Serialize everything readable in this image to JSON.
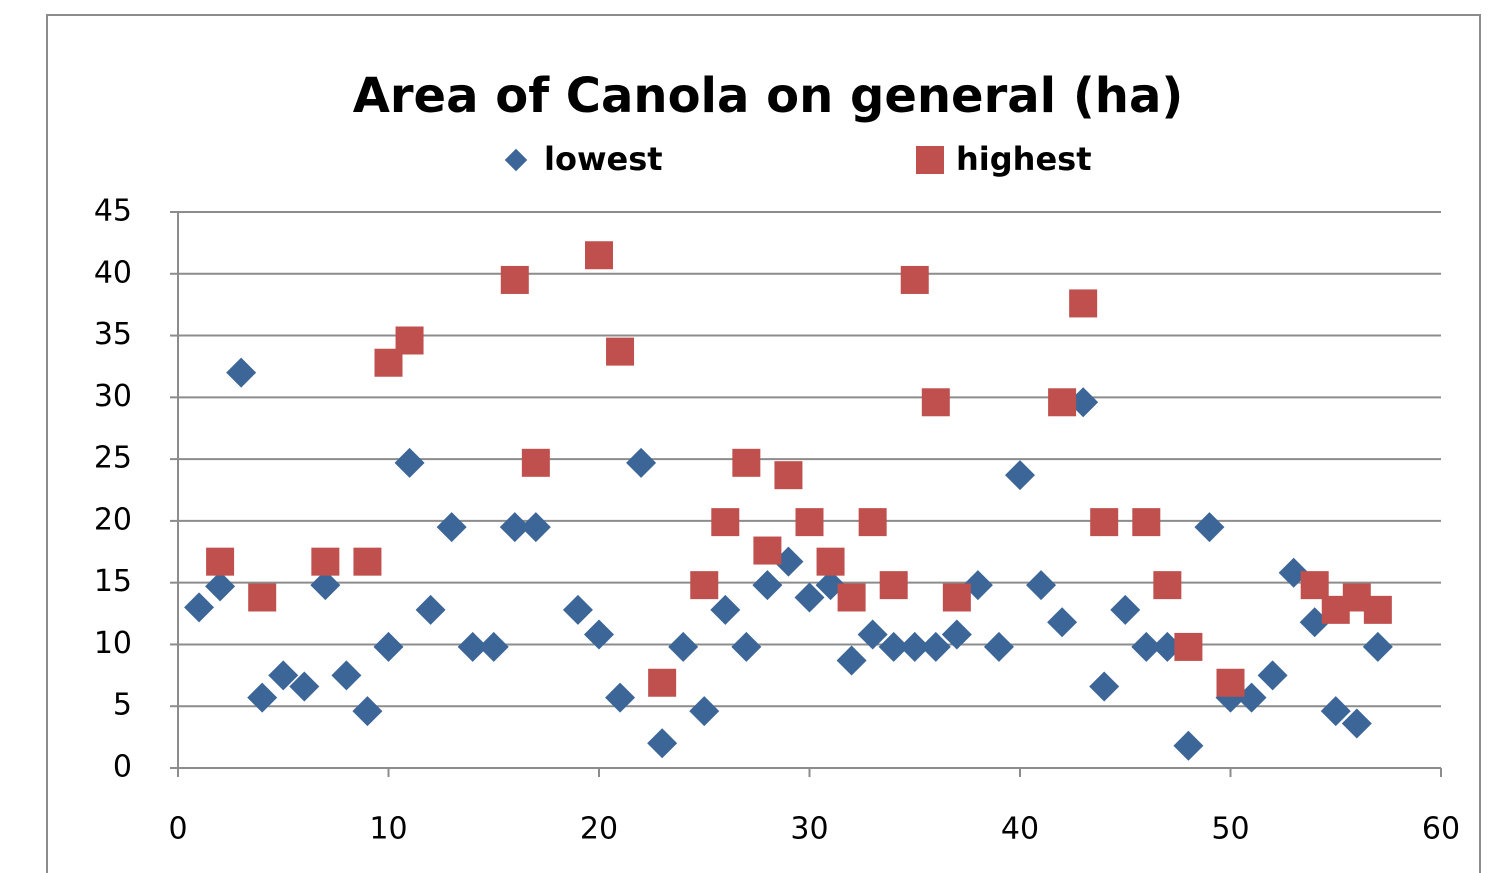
{
  "chart_data": {
    "type": "scatter",
    "title": "Area of Canola on general (ha)",
    "xlim": [
      0,
      60
    ],
    "xticks": [
      0,
      10,
      20,
      30,
      40,
      50,
      60
    ],
    "ylim": [
      0,
      45
    ],
    "yticks": [
      0,
      5,
      10,
      15,
      20,
      25,
      30,
      35,
      40,
      45
    ],
    "grid": true,
    "legend": "top",
    "series": [
      {
        "name": "lowest",
        "color": "#3c6698",
        "marker": "diamond",
        "x": [
          1,
          2,
          3,
          4,
          5,
          6,
          7,
          8,
          9,
          10,
          11,
          12,
          13,
          14,
          15,
          16,
          17,
          19,
          20,
          21,
          22,
          23,
          24,
          25,
          26,
          27,
          28,
          29,
          30,
          31,
          32,
          33,
          34,
          35,
          36,
          37,
          38,
          39,
          40,
          41,
          42,
          43,
          44,
          45,
          46,
          47,
          48,
          49,
          50,
          51,
          52,
          53,
          54,
          55,
          56,
          57
        ],
        "values": [
          13,
          14.7,
          32,
          5.7,
          7.5,
          6.6,
          14.8,
          7.5,
          4.6,
          9.8,
          24.7,
          12.8,
          19.5,
          9.8,
          9.8,
          19.5,
          19.5,
          12.8,
          10.8,
          5.7,
          24.7,
          2,
          9.8,
          4.6,
          12.8,
          9.8,
          14.8,
          16.7,
          13.8,
          14.8,
          8.7,
          10.8,
          9.8,
          9.8,
          9.8,
          10.8,
          14.8,
          9.8,
          23.7,
          14.8,
          11.8,
          29.6,
          6.6,
          12.8,
          9.8,
          9.8,
          1.8,
          19.5,
          5.7,
          5.7,
          7.5,
          15.8,
          11.8,
          4.6,
          3.6,
          9.8
        ]
      },
      {
        "name": "highest",
        "color": "#c0504d",
        "marker": "square",
        "x": [
          2,
          4,
          7,
          9,
          10,
          11,
          16,
          17,
          20,
          21,
          23,
          25,
          26,
          27,
          28,
          29,
          30,
          31,
          32,
          33,
          34,
          35,
          36,
          37,
          42,
          43,
          44,
          46,
          47,
          48,
          50,
          54,
          55,
          56,
          57
        ],
        "values": [
          16.7,
          13.8,
          16.7,
          16.7,
          32.8,
          34.6,
          39.5,
          24.7,
          41.5,
          33.7,
          6.9,
          14.8,
          19.9,
          24.7,
          17.6,
          23.7,
          19.9,
          16.7,
          13.8,
          19.9,
          14.8,
          39.5,
          29.6,
          13.8,
          29.6,
          37.6,
          19.9,
          19.9,
          14.8,
          9.8,
          6.9,
          14.8,
          12.8,
          13.8,
          12.8
        ]
      }
    ]
  }
}
